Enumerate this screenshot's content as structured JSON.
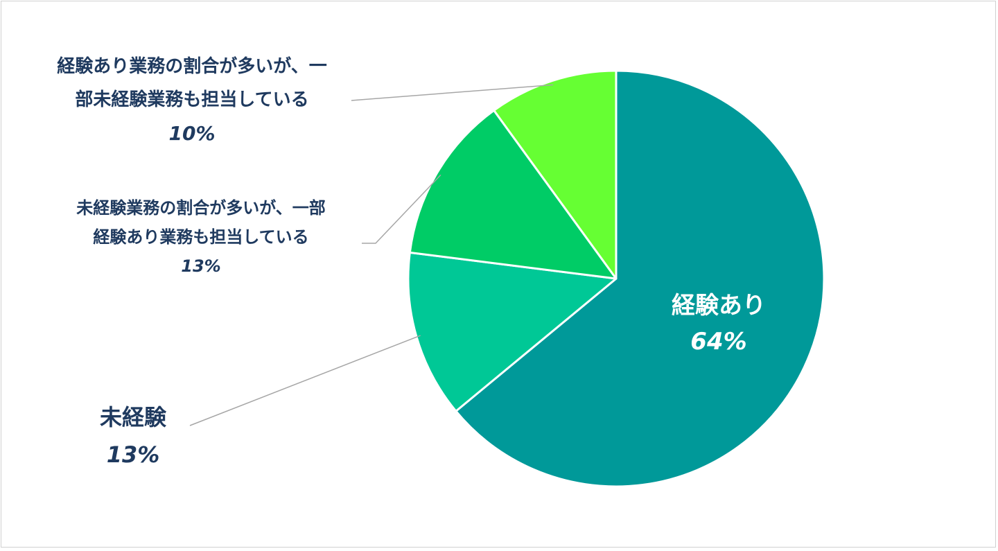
{
  "chart_data": {
    "type": "pie",
    "start_angle_deg": 0,
    "direction": "clockwise",
    "slices": [
      {
        "label": "経験あり",
        "value": 64,
        "value_label": "64%",
        "color": "#009999"
      },
      {
        "label": "未経験",
        "value": 13,
        "value_label": "13%",
        "color": "#00c896"
      },
      {
        "label_lines": [
          "未経験業務の割合が多いが、一部",
          "経験あり業務も担当している"
        ],
        "value": 13,
        "value_label": "13%",
        "color": "#00cc66"
      },
      {
        "label_lines": [
          "経験あり業務の割合が多いが、一",
          "部未経験業務も担当している"
        ],
        "value": 10,
        "value_label": "10%",
        "color": "#66ff33"
      }
    ]
  }
}
